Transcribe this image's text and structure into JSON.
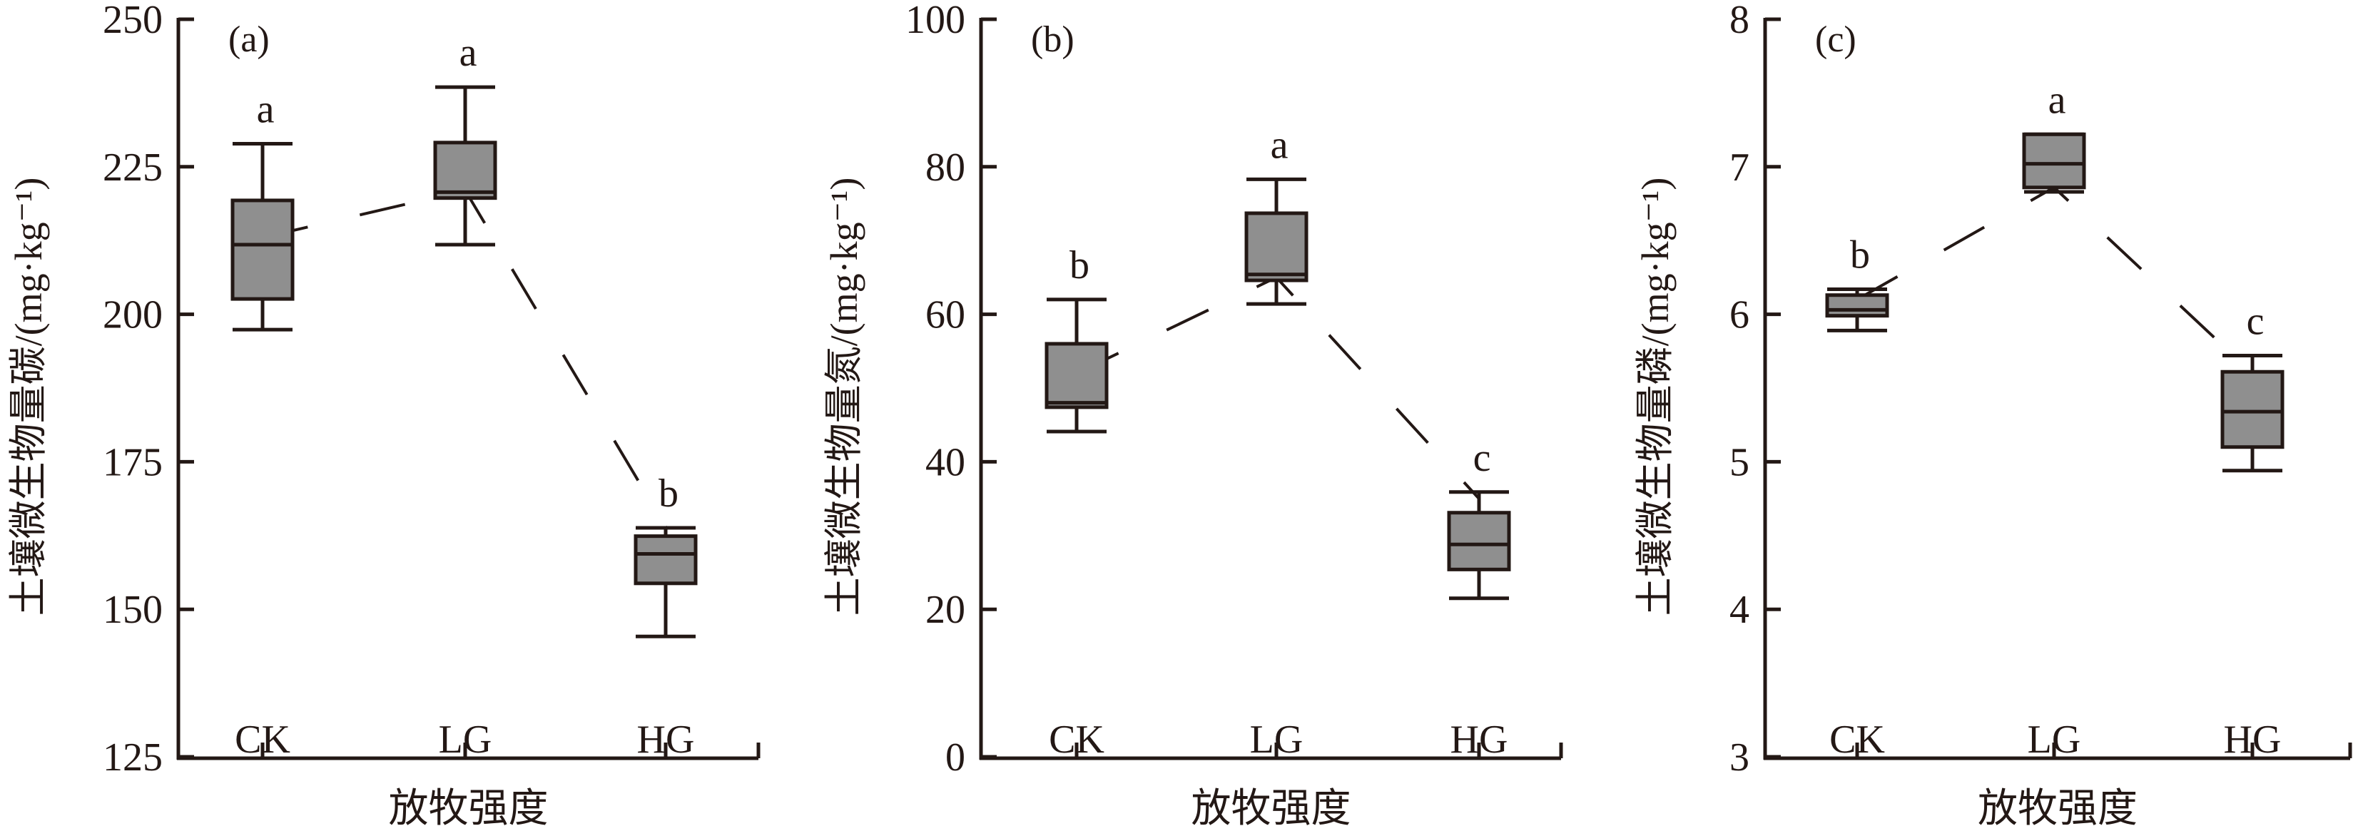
{
  "chart_data": [
    {
      "type": "box",
      "panel_label": "(a)",
      "ylabel": "土壤微生物量碳/(mg·kg⁻¹)",
      "xlabel": "放牧强度",
      "categories": [
        "CK",
        "LG",
        "HG"
      ],
      "ylim": [
        125,
        250
      ],
      "yticks": [
        125,
        150,
        175,
        200,
        225,
        250
      ],
      "boxes": [
        {
          "min": 197.4,
          "q1": 202.6,
          "median": 211.8,
          "q3": 219.3,
          "max": 228.9,
          "mean": 213,
          "letter": "a"
        },
        {
          "min": 211.8,
          "q1": 219.7,
          "median": 220.7,
          "q3": 229.1,
          "max": 238.5,
          "mean": 221,
          "letter": "a"
        },
        {
          "min": 145.4,
          "q1": 154.4,
          "median": 159.4,
          "q3": 162.4,
          "max": 163.8,
          "mean": 164,
          "letter": "b"
        }
      ]
    },
    {
      "type": "box",
      "panel_label": "(b)",
      "ylabel": "土壤微生物量氮/(mg·kg⁻¹)",
      "xlabel": "放牧强度",
      "categories": [
        "CK",
        "LG",
        "HG"
      ],
      "ylim": [
        0,
        100
      ],
      "yticks": [
        0,
        20,
        40,
        60,
        80,
        100
      ],
      "boxes": [
        {
          "min": 44.1,
          "q1": 47.4,
          "median": 48.0,
          "q3": 56.0,
          "max": 62.0,
          "mean": 52,
          "letter": "b"
        },
        {
          "min": 61.4,
          "q1": 64.6,
          "median": 65.4,
          "q3": 73.7,
          "max": 78.3,
          "mean": 65,
          "letter": "a"
        },
        {
          "min": 21.5,
          "q1": 25.4,
          "median": 28.8,
          "q3": 33.1,
          "max": 35.9,
          "mean": 35,
          "letter": "c"
        }
      ]
    },
    {
      "type": "box",
      "panel_label": "(c)",
      "ylabel": "土壤微生物量磷/(mg·kg⁻¹)",
      "xlabel": "放牧强度",
      "categories": [
        "CK",
        "LG",
        "HG"
      ],
      "ylim": [
        3,
        8
      ],
      "yticks": [
        3,
        4,
        5,
        6,
        7,
        8
      ],
      "boxes": [
        {
          "min": 5.89,
          "q1": 5.99,
          "median": 6.03,
          "q3": 6.13,
          "max": 6.17,
          "mean": 6.1,
          "letter": "b"
        },
        {
          "min": 6.83,
          "q1": 6.86,
          "median": 7.02,
          "q3": 7.22,
          "max": 7.22,
          "mean": 6.86,
          "letter": "a"
        },
        {
          "min": 4.94,
          "q1": 5.1,
          "median": 5.34,
          "q3": 5.61,
          "max": 5.72,
          "mean": 5.6,
          "letter": "c"
        }
      ]
    }
  ],
  "colors": {
    "box_fill": "#8f8f8f",
    "ink": "#231815"
  }
}
